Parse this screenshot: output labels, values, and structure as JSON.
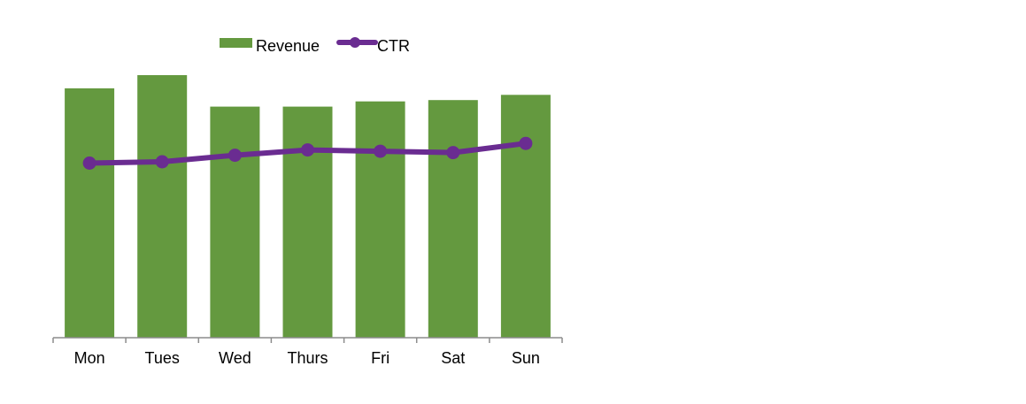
{
  "chart_data": {
    "type": "bar",
    "title": "",
    "xlabel": "",
    "ylabel": "",
    "categories": [
      "Mon",
      "Tues",
      "Wed",
      "Thurs",
      "Fri",
      "Sat",
      "Sun"
    ],
    "ylim": [
      0,
      100
    ],
    "grid": false,
    "legend_position": "top",
    "series": [
      {
        "name": "Revenue",
        "type": "bar",
        "color": "#64993f",
        "values": [
          95,
          100,
          88,
          88,
          90,
          90.5,
          92.5
        ]
      },
      {
        "name": "CTR",
        "type": "line",
        "color": "#6a2c91",
        "values": [
          66.5,
          67,
          69.5,
          71.5,
          71,
          70.5,
          74
        ]
      }
    ]
  }
}
